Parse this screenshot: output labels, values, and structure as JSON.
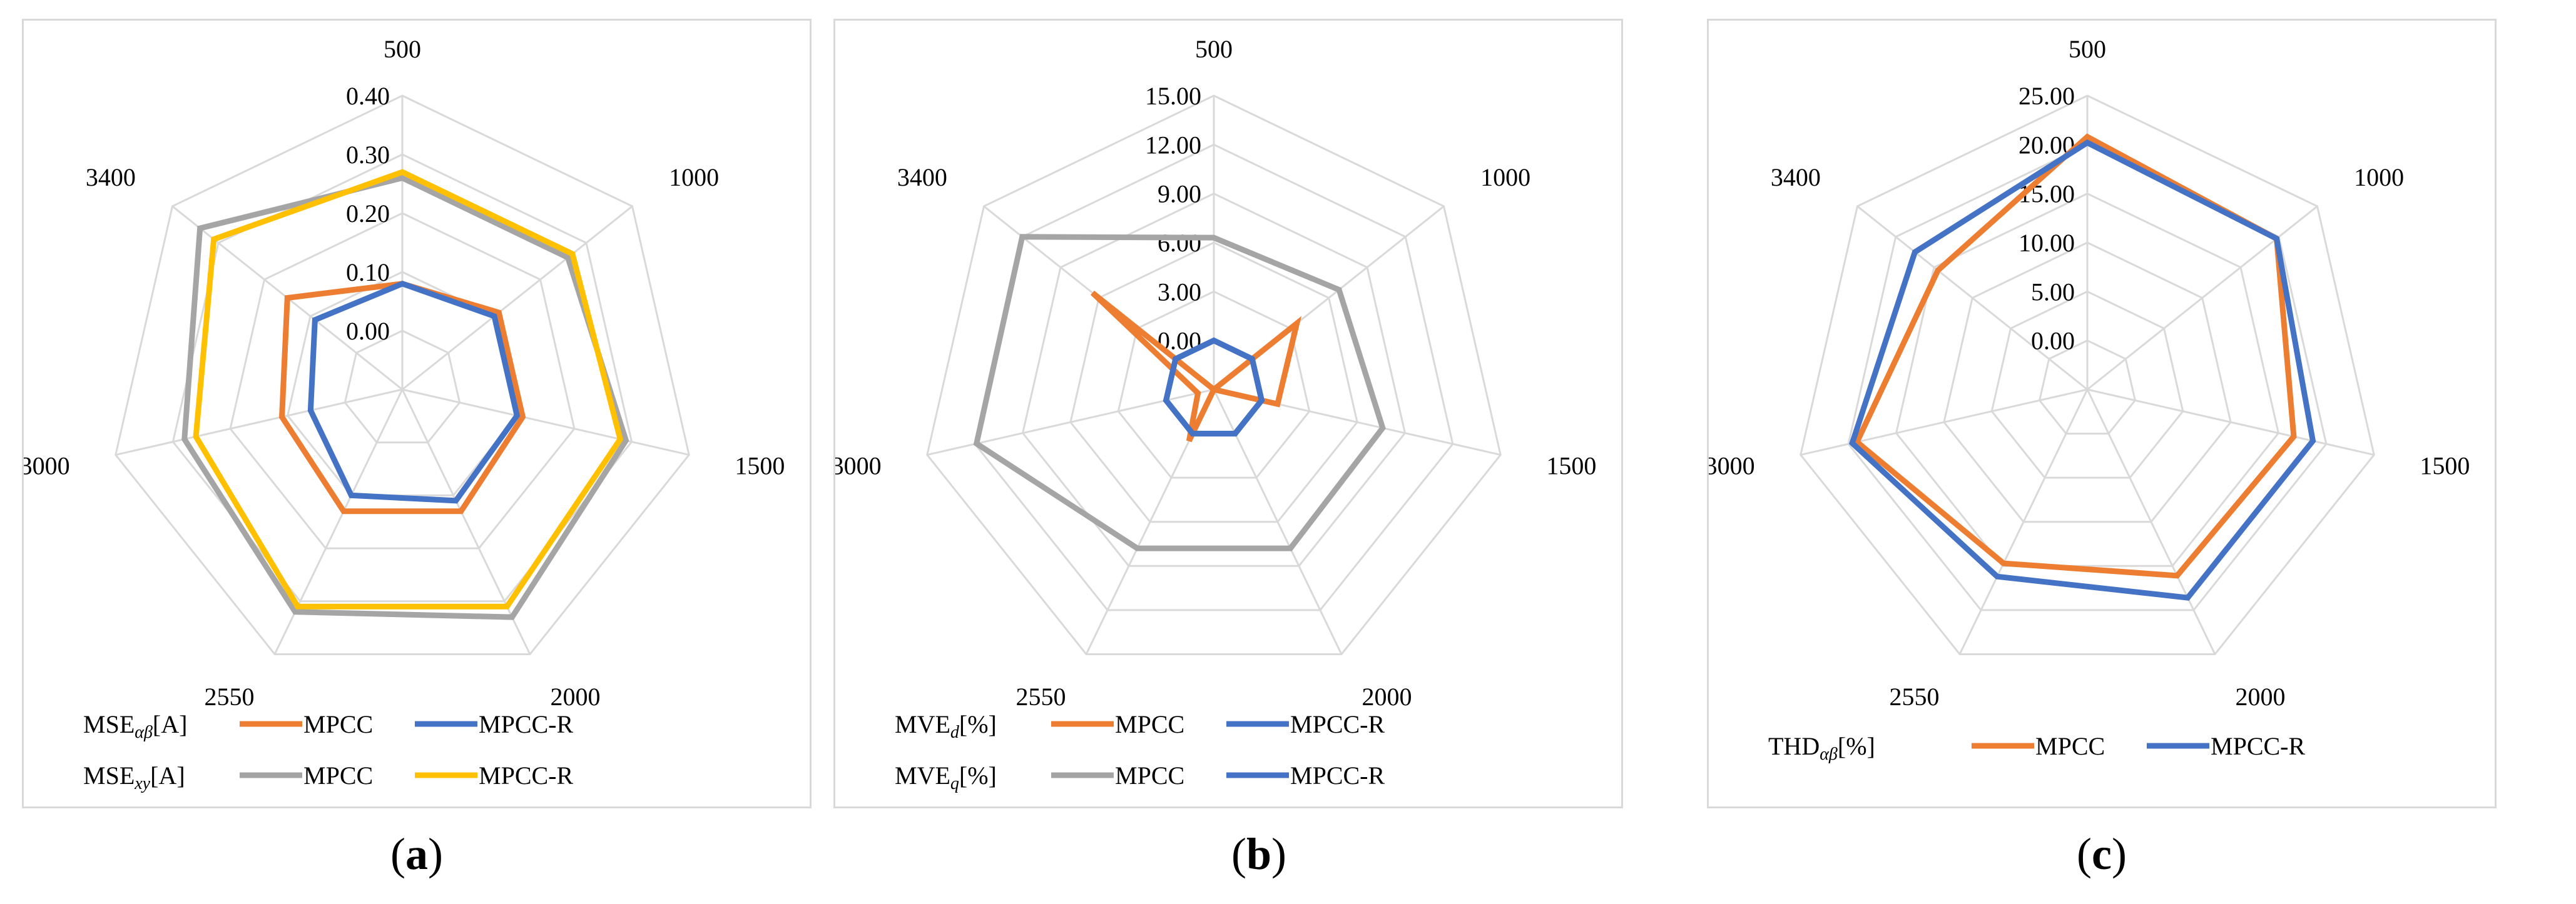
{
  "captions": {
    "a": "a",
    "b": "b",
    "c": "c"
  },
  "chart_data": [
    {
      "type": "radar",
      "panel": "a",
      "categories": [
        "500",
        "1000",
        "1500",
        "2000",
        "2550",
        "3000",
        "3400"
      ],
      "ticks": [
        "0.00",
        "0.10",
        "0.20",
        "0.30",
        "0.40"
      ],
      "rlim": [
        -0.1,
        0.4
      ],
      "series": [
        {
          "name": "MPCC",
          "group": "MSE_αβ[A]",
          "color": "#ED7D31",
          "values": [
            0.08,
            0.11,
            0.11,
            0.13,
            0.13,
            0.11,
            0.15
          ]
        },
        {
          "name": "MPCC-R",
          "group": "MSE_αβ[A]",
          "color": "#4472C4",
          "values": [
            0.08,
            0.1,
            0.1,
            0.11,
            0.1,
            0.06,
            0.09
          ]
        },
        {
          "name": "MPCC",
          "group": "MSE_xy[A]",
          "color": "#A5A5A5",
          "values": [
            0.26,
            0.26,
            0.29,
            0.33,
            0.32,
            0.28,
            0.34
          ]
        },
        {
          "name": "MPCC-R",
          "group": "MSE_xy[A]",
          "color": "#FFC000",
          "values": [
            0.27,
            0.27,
            0.28,
            0.31,
            0.31,
            0.26,
            0.31
          ]
        }
      ],
      "legend": [
        {
          "group": "MSE",
          "subscript": "αβ",
          "unit": "[A]",
          "items": [
            "MPCC",
            "MPCC-R"
          ],
          "colors": [
            "#ED7D31",
            "#4472C4"
          ]
        },
        {
          "group": "MSE",
          "subscript": "xy",
          "unit": "[A]",
          "items": [
            "MPCC",
            "MPCC-R"
          ],
          "colors": [
            "#A5A5A5",
            "#FFC000"
          ]
        }
      ]
    },
    {
      "type": "radar",
      "panel": "b",
      "categories": [
        "500",
        "1000",
        "1500",
        "2000",
        "2550",
        "3000",
        "3400"
      ],
      "ticks": [
        "0.00",
        "3.00",
        "6.00",
        "9.00",
        "12.00",
        "15.00"
      ],
      "rlim": [
        -3,
        15
      ],
      "series": [
        {
          "name": "MPCC",
          "group": "MVE_d[%]",
          "color": "#ED7D31",
          "values": [
            -3.0,
            3.5,
            1.0,
            -3.0,
            0.5,
            -2.0,
            6.5
          ]
        },
        {
          "name": "MPCC-R",
          "group": "MVE_d[%]",
          "color": "#4472C4",
          "values": [
            0.0,
            0.0,
            0.0,
            0.0,
            0.0,
            0.0,
            0.0
          ]
        },
        {
          "name": "MPCC",
          "group": "MVE_q[%]",
          "color": "#A5A5A5",
          "values": [
            6.3,
            6.8,
            7.6,
            7.8,
            7.8,
            11.9,
            12.0
          ]
        },
        {
          "name": "MPCC-R",
          "group": "MVE_q[%]",
          "color": "#4472C4",
          "values": [
            0.0,
            0.0,
            0.0,
            0.0,
            0.0,
            0.0,
            0.0
          ]
        }
      ],
      "legend": [
        {
          "group": "MVE",
          "subscript": "d",
          "unit": "[%]",
          "items": [
            "MPCC",
            "MPCC-R"
          ],
          "colors": [
            "#ED7D31",
            "#4472C4"
          ]
        },
        {
          "group": "MVE",
          "subscript": "q",
          "unit": "[%]",
          "items": [
            "MPCC",
            "MPCC-R"
          ],
          "colors": [
            "#A5A5A5",
            "#4472C4"
          ]
        }
      ]
    },
    {
      "type": "radar",
      "panel": "c",
      "categories": [
        "500",
        "1000",
        "1500",
        "2000",
        "2550",
        "3000",
        "3400"
      ],
      "ticks": [
        "0.00",
        "5.00",
        "10.00",
        "15.00",
        "20.00",
        "25.00"
      ],
      "rlim": [
        -5,
        25
      ],
      "series": [
        {
          "name": "MPCC",
          "group": "THD_αβ[%]",
          "color": "#ED7D31",
          "values": [
            20.8,
            19.7,
            16.6,
            16.1,
            14.7,
            19.1,
            14.5
          ]
        },
        {
          "name": "MPCC-R",
          "group": "THD_αβ[%]",
          "color": "#4472C4",
          "values": [
            20.2,
            19.7,
            18.6,
            18.6,
            16.2,
            19.6,
            17.5
          ]
        }
      ],
      "legend": [
        {
          "group": "THD",
          "subscript": "αβ",
          "unit": "[%]",
          "items": [
            "MPCC",
            "MPCC-R"
          ],
          "colors": [
            "#ED7D31",
            "#4472C4"
          ]
        }
      ]
    }
  ]
}
